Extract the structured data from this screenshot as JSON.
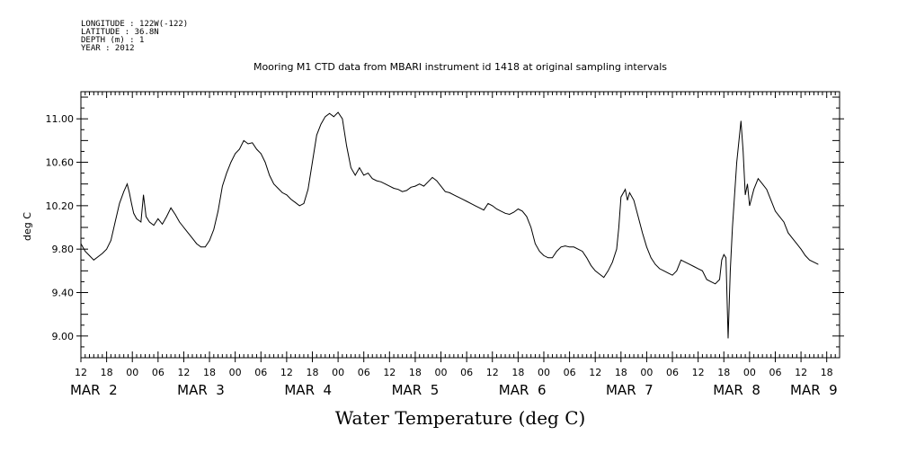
{
  "metadata": {
    "longitude": "LONGITUDE : 122W(-122)",
    "latitude": "LATITUDE : 36.8N",
    "depth": "DEPTH (m) : 1",
    "year": "YEAR : 2012"
  },
  "chart_data": {
    "type": "line",
    "title": "Mooring M1 CTD data from MBARI instrument id 1418 at original sampling intervals",
    "xlabel": "Water Temperature (deg C)",
    "ylabel": "deg C",
    "x_unit": "hours since MAR 1 12:00 (2012)",
    "xlim": [
      0,
      177
    ],
    "ylim": [
      8.8,
      11.25
    ],
    "yticks": [
      9.0,
      9.4,
      9.8,
      10.2,
      10.6,
      11.0
    ],
    "ytick_labels": [
      "9.00",
      "9.40",
      "9.80",
      "10.20",
      "10.60",
      "11.00"
    ],
    "xtick_hour_labels": [
      {
        "x": 0,
        "label": "12"
      },
      {
        "x": 6,
        "label": "18"
      },
      {
        "x": 12,
        "label": "00"
      },
      {
        "x": 18,
        "label": "06"
      },
      {
        "x": 24,
        "label": "12"
      },
      {
        "x": 30,
        "label": "18"
      },
      {
        "x": 36,
        "label": "00"
      },
      {
        "x": 42,
        "label": "06"
      },
      {
        "x": 48,
        "label": "12"
      },
      {
        "x": 54,
        "label": "18"
      },
      {
        "x": 60,
        "label": "00"
      },
      {
        "x": 66,
        "label": "06"
      },
      {
        "x": 72,
        "label": "12"
      },
      {
        "x": 78,
        "label": "18"
      },
      {
        "x": 84,
        "label": "00"
      },
      {
        "x": 90,
        "label": "06"
      },
      {
        "x": 96,
        "label": "12"
      },
      {
        "x": 102,
        "label": "18"
      },
      {
        "x": 108,
        "label": "00"
      },
      {
        "x": 114,
        "label": "06"
      },
      {
        "x": 120,
        "label": "12"
      },
      {
        "x": 126,
        "label": "18"
      },
      {
        "x": 132,
        "label": "00"
      },
      {
        "x": 138,
        "label": "06"
      },
      {
        "x": 144,
        "label": "12"
      },
      {
        "x": 150,
        "label": "18"
      },
      {
        "x": 156,
        "label": "00"
      },
      {
        "x": 162,
        "label": "06"
      },
      {
        "x": 168,
        "label": "12"
      },
      {
        "x": 174,
        "label": "18"
      }
    ],
    "xtick_day_labels": [
      {
        "x": 3,
        "label": "MAR  2"
      },
      {
        "x": 28,
        "label": "MAR  3"
      },
      {
        "x": 53,
        "label": "MAR  4"
      },
      {
        "x": 78,
        "label": "MAR  5"
      },
      {
        "x": 103,
        "label": "MAR  6"
      },
      {
        "x": 128,
        "label": "MAR  7"
      },
      {
        "x": 153,
        "label": "MAR  8"
      },
      {
        "x": 171,
        "label": "MAR  9"
      }
    ],
    "grid": false,
    "series": [
      {
        "color": "#000000",
        "points": [
          [
            0,
            9.85
          ],
          [
            1,
            9.78
          ],
          [
            2,
            9.74
          ],
          [
            3,
            9.7
          ],
          [
            4,
            9.73
          ],
          [
            5,
            9.76
          ],
          [
            6,
            9.8
          ],
          [
            7,
            9.88
          ],
          [
            8,
            10.05
          ],
          [
            9,
            10.22
          ],
          [
            10,
            10.33
          ],
          [
            10.8,
            10.4
          ],
          [
            11.3,
            10.32
          ],
          [
            11.8,
            10.22
          ],
          [
            12.3,
            10.13
          ],
          [
            13,
            10.08
          ],
          [
            14,
            10.05
          ],
          [
            14.6,
            10.3
          ],
          [
            15.2,
            10.1
          ],
          [
            16,
            10.05
          ],
          [
            17,
            10.02
          ],
          [
            18,
            10.08
          ],
          [
            19,
            10.03
          ],
          [
            20,
            10.1
          ],
          [
            21,
            10.18
          ],
          [
            22,
            10.12
          ],
          [
            23,
            10.05
          ],
          [
            24,
            10.0
          ],
          [
            25,
            9.95
          ],
          [
            26,
            9.9
          ],
          [
            27,
            9.85
          ],
          [
            28,
            9.82
          ],
          [
            29,
            9.82
          ],
          [
            30,
            9.88
          ],
          [
            31,
            9.98
          ],
          [
            32,
            10.15
          ],
          [
            33,
            10.38
          ],
          [
            34,
            10.5
          ],
          [
            35,
            10.6
          ],
          [
            36,
            10.68
          ],
          [
            37,
            10.72
          ],
          [
            38,
            10.8
          ],
          [
            39,
            10.77
          ],
          [
            40,
            10.78
          ],
          [
            41,
            10.72
          ],
          [
            42,
            10.68
          ],
          [
            43,
            10.6
          ],
          [
            44,
            10.48
          ],
          [
            45,
            10.4
          ],
          [
            46,
            10.36
          ],
          [
            47,
            10.32
          ],
          [
            48,
            10.3
          ],
          [
            49,
            10.26
          ],
          [
            50,
            10.23
          ],
          [
            51,
            10.2
          ],
          [
            52,
            10.22
          ],
          [
            53,
            10.35
          ],
          [
            54,
            10.6
          ],
          [
            55,
            10.85
          ],
          [
            56,
            10.95
          ],
          [
            57,
            11.02
          ],
          [
            58,
            11.05
          ],
          [
            59,
            11.02
          ],
          [
            60,
            11.06
          ],
          [
            61,
            11.0
          ],
          [
            62,
            10.75
          ],
          [
            63,
            10.55
          ],
          [
            64,
            10.48
          ],
          [
            65,
            10.55
          ],
          [
            66,
            10.48
          ],
          [
            67,
            10.5
          ],
          [
            68,
            10.45
          ],
          [
            69,
            10.43
          ],
          [
            70,
            10.42
          ],
          [
            71,
            10.4
          ],
          [
            72,
            10.38
          ],
          [
            73,
            10.36
          ],
          [
            74,
            10.35
          ],
          [
            75,
            10.33
          ],
          [
            76,
            10.34
          ],
          [
            77,
            10.37
          ],
          [
            78,
            10.38
          ],
          [
            79,
            10.4
          ],
          [
            80,
            10.38
          ],
          [
            81,
            10.42
          ],
          [
            82,
            10.46
          ],
          [
            83,
            10.43
          ],
          [
            84,
            10.38
          ],
          [
            85,
            10.33
          ],
          [
            86,
            10.32
          ],
          [
            87,
            10.3
          ],
          [
            88,
            10.28
          ],
          [
            89,
            10.26
          ],
          [
            90,
            10.24
          ],
          [
            91,
            10.22
          ],
          [
            92,
            10.2
          ],
          [
            93,
            10.18
          ],
          [
            94,
            10.16
          ],
          [
            95,
            10.22
          ],
          [
            96,
            10.2
          ],
          [
            97,
            10.17
          ],
          [
            98,
            10.15
          ],
          [
            99,
            10.13
          ],
          [
            100,
            10.12
          ],
          [
            101,
            10.14
          ],
          [
            102,
            10.17
          ],
          [
            103,
            10.15
          ],
          [
            104,
            10.1
          ],
          [
            105,
            10.0
          ],
          [
            106,
            9.85
          ],
          [
            107,
            9.78
          ],
          [
            108,
            9.74
          ],
          [
            109,
            9.72
          ],
          [
            110,
            9.72
          ],
          [
            111,
            9.78
          ],
          [
            112,
            9.82
          ],
          [
            113,
            9.83
          ],
          [
            114,
            9.82
          ],
          [
            115,
            9.82
          ],
          [
            116,
            9.8
          ],
          [
            117,
            9.78
          ],
          [
            118,
            9.72
          ],
          [
            119,
            9.65
          ],
          [
            120,
            9.6
          ],
          [
            121,
            9.57
          ],
          [
            122,
            9.54
          ],
          [
            123,
            9.6
          ],
          [
            124,
            9.68
          ],
          [
            125,
            9.8
          ],
          [
            125.5,
            10.0
          ],
          [
            126,
            10.28
          ],
          [
            127,
            10.35
          ],
          [
            127.5,
            10.25
          ],
          [
            128,
            10.32
          ],
          [
            129,
            10.25
          ],
          [
            130,
            10.1
          ],
          [
            131,
            9.95
          ],
          [
            132,
            9.82
          ],
          [
            133,
            9.72
          ],
          [
            134,
            9.66
          ],
          [
            135,
            9.62
          ],
          [
            136,
            9.6
          ],
          [
            137,
            9.58
          ],
          [
            138,
            9.56
          ],
          [
            139,
            9.6
          ],
          [
            140,
            9.7
          ],
          [
            141,
            9.68
          ],
          [
            142,
            9.66
          ],
          [
            143,
            9.64
          ],
          [
            144,
            9.62
          ],
          [
            145,
            9.6
          ],
          [
            146,
            9.52
          ],
          [
            147,
            9.5
          ],
          [
            148,
            9.48
          ],
          [
            149,
            9.52
          ],
          [
            149.5,
            9.7
          ],
          [
            150,
            9.75
          ],
          [
            150.5,
            9.72
          ],
          [
            151,
            8.98
          ],
          [
            151.5,
            9.6
          ],
          [
            152,
            10.0
          ],
          [
            153,
            10.6
          ],
          [
            154,
            10.98
          ],
          [
            154.5,
            10.7
          ],
          [
            155,
            10.3
          ],
          [
            155.5,
            10.4
          ],
          [
            156,
            10.2
          ],
          [
            157,
            10.35
          ],
          [
            158,
            10.45
          ],
          [
            159,
            10.4
          ],
          [
            160,
            10.35
          ],
          [
            161,
            10.25
          ],
          [
            162,
            10.15
          ],
          [
            163,
            10.1
          ],
          [
            164,
            10.05
          ],
          [
            165,
            9.95
          ],
          [
            166,
            9.9
          ],
          [
            167,
            9.85
          ],
          [
            168,
            9.8
          ],
          [
            169,
            9.74
          ],
          [
            170,
            9.7
          ],
          [
            171,
            9.68
          ],
          [
            172,
            9.66
          ]
        ]
      }
    ]
  }
}
